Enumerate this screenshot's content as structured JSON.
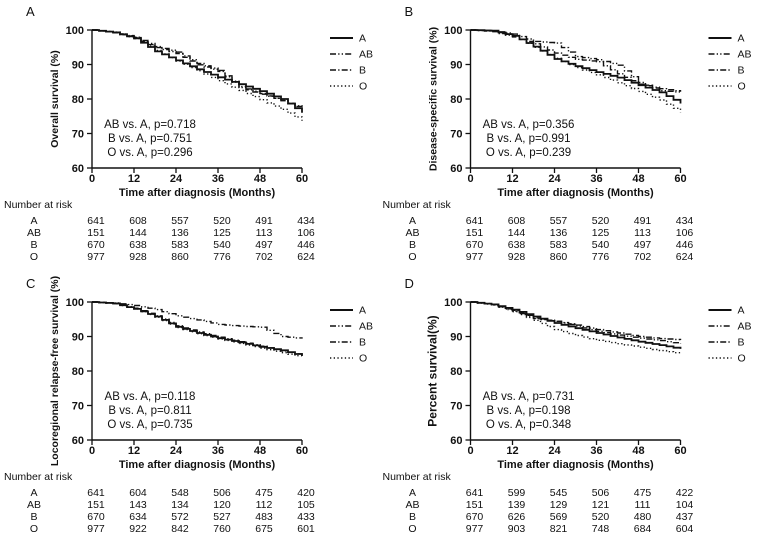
{
  "style": {
    "ink": "#111111",
    "background": "#ffffff"
  },
  "labels": {
    "number_at_risk": "Number at risk"
  },
  "axes": {
    "xlabel": "Time after diagnosis (Months)",
    "x_ticks": [
      0,
      12,
      24,
      36,
      48,
      60
    ],
    "y_ticks": [
      60,
      70,
      80,
      90,
      100
    ],
    "xlim": [
      0,
      60
    ],
    "ylim": [
      60,
      100
    ],
    "grid": false
  },
  "legend": {
    "position": "right",
    "entries": [
      {
        "label": "A",
        "style": "solid"
      },
      {
        "label": "AB",
        "style": "dash-dot-dot"
      },
      {
        "label": "B",
        "style": "dash-dot"
      },
      {
        "label": "O",
        "style": "dotted"
      }
    ]
  },
  "chart_data": [
    {
      "type": "line",
      "subtype": "kaplan-meier",
      "letter": "A",
      "ylabel": "Overall survival (%)",
      "x": [
        0,
        6,
        12,
        18,
        24,
        30,
        36,
        42,
        48,
        54,
        60
      ],
      "series": [
        {
          "name": "A",
          "style": "solid",
          "values": [
            100,
            99.3,
            97.6,
            93.8,
            91.2,
            88.6,
            86.3,
            84.3,
            82.3,
            80.0,
            76.0
          ]
        },
        {
          "name": "AB",
          "style": "dash-dot-dot",
          "values": [
            100,
            99.3,
            97.9,
            95.2,
            93.6,
            90.3,
            88.3,
            83.6,
            81.6,
            79.5,
            77.3
          ]
        },
        {
          "name": "B",
          "style": "dash-dot",
          "values": [
            100,
            99.2,
            97.5,
            94.9,
            93.2,
            89.9,
            88.0,
            83.3,
            81.4,
            79.6,
            77.0
          ]
        },
        {
          "name": "O",
          "style": "dotted",
          "values": [
            100,
            99.4,
            97.8,
            94.1,
            91.0,
            88.2,
            85.3,
            82.5,
            79.8,
            77.0,
            73.7
          ]
        }
      ],
      "annotations": [
        "AB vs. A, p=0.718",
        "B vs. A, p=0.751",
        "O vs. A, p=0.296"
      ],
      "number_at_risk": {
        "columns": [
          0,
          12,
          24,
          36,
          48,
          60
        ],
        "rows": [
          {
            "label": "A",
            "values": [
              641,
              608,
              557,
              520,
              491,
              434
            ]
          },
          {
            "label": "AB",
            "values": [
              151,
              144,
              136,
              125,
              113,
              106
            ]
          },
          {
            "label": "B",
            "values": [
              670,
              638,
              583,
              540,
              497,
              446
            ]
          },
          {
            "label": "O",
            "values": [
              977,
              928,
              860,
              776,
              702,
              624
            ]
          }
        ]
      }
    },
    {
      "type": "line",
      "subtype": "kaplan-meier",
      "letter": "B",
      "ylabel": "Disease-specific survival (%)",
      "x": [
        0,
        6,
        12,
        18,
        24,
        30,
        36,
        42,
        48,
        54,
        60
      ],
      "series": [
        {
          "name": "A",
          "style": "solid",
          "values": [
            100,
            99.8,
            98.3,
            95.2,
            91.6,
            89.5,
            87.8,
            86.2,
            84.0,
            81.9,
            78.7
          ]
        },
        {
          "name": "AB",
          "style": "dash-dot-dot",
          "values": [
            100,
            99.8,
            98.8,
            96.7,
            96.2,
            92.3,
            91.4,
            89.8,
            84.8,
            82.4,
            81.9
          ]
        },
        {
          "name": "B",
          "style": "dash-dot",
          "values": [
            100,
            99.5,
            98.0,
            96.0,
            93.3,
            91.5,
            90.8,
            87.3,
            84.3,
            83.0,
            82.1
          ]
        },
        {
          "name": "O",
          "style": "dotted",
          "values": [
            100,
            99.7,
            98.4,
            95.0,
            91.8,
            89.1,
            87.0,
            84.7,
            82.2,
            79.7,
            76.1
          ]
        }
      ],
      "annotations": [
        "AB vs. A, p=0.356",
        "B vs. A, p=0.991",
        "O vs. A, p=0.239"
      ],
      "number_at_risk": {
        "columns": [
          0,
          12,
          24,
          36,
          48,
          60
        ],
        "rows": [
          {
            "label": "A",
            "values": [
              641,
              608,
              557,
              520,
              491,
              434
            ]
          },
          {
            "label": "AB",
            "values": [
              151,
              144,
              136,
              125,
              113,
              106
            ]
          },
          {
            "label": "B",
            "values": [
              670,
              638,
              583,
              540,
              497,
              446
            ]
          },
          {
            "label": "O",
            "values": [
              977,
              928,
              860,
              776,
              702,
              624
            ]
          }
        ]
      }
    },
    {
      "type": "line",
      "subtype": "kaplan-meier",
      "letter": "C",
      "ylabel": "Locoregional relapse-free survival (%)",
      "x": [
        0,
        6,
        12,
        18,
        24,
        30,
        36,
        42,
        48,
        54,
        60
      ],
      "series": [
        {
          "name": "A",
          "style": "solid",
          "values": [
            100,
            99.6,
            98.0,
            95.8,
            92.8,
            91.0,
            89.5,
            88.3,
            87.0,
            86.0,
            84.4
          ]
        },
        {
          "name": "AB",
          "style": "dash-dot-dot",
          "values": [
            100,
            99.7,
            99.0,
            97.8,
            96.0,
            94.8,
            93.5,
            93.0,
            92.7,
            90.0,
            89.4
          ]
        },
        {
          "name": "B",
          "style": "dash-dot",
          "values": [
            100,
            99.5,
            98.2,
            96.0,
            93.1,
            91.3,
            89.8,
            88.5,
            87.2,
            85.8,
            84.6
          ]
        },
        {
          "name": "O",
          "style": "dotted",
          "values": [
            100,
            99.5,
            98.0,
            95.6,
            92.6,
            90.8,
            89.3,
            88.0,
            86.6,
            85.3,
            84.0
          ]
        }
      ],
      "annotations": [
        "AB vs. A, p=0.118",
        "B vs. A, p=0.811",
        "O vs. A, p=0.735"
      ],
      "number_at_risk": {
        "columns": [
          0,
          12,
          24,
          36,
          48,
          60
        ],
        "rows": [
          {
            "label": "A",
            "values": [
              641,
              604,
              548,
              506,
              475,
              420
            ]
          },
          {
            "label": "AB",
            "values": [
              151,
              143,
              134,
              120,
              112,
              105
            ]
          },
          {
            "label": "B",
            "values": [
              670,
              634,
              572,
              527,
              483,
              433
            ]
          },
          {
            "label": "O",
            "values": [
              977,
              922,
              842,
              760,
              675,
              601
            ]
          }
        ]
      }
    },
    {
      "type": "line",
      "subtype": "kaplan-meier",
      "letter": "D",
      "ylabel": "Percent survival(%)",
      "x": [
        0,
        6,
        12,
        18,
        24,
        30,
        36,
        42,
        48,
        54,
        60
      ],
      "series": [
        {
          "name": "A",
          "style": "solid",
          "values": [
            100,
            99.3,
            97.8,
            95.8,
            93.9,
            92.4,
            91.0,
            89.7,
            88.5,
            87.5,
            86.4
          ]
        },
        {
          "name": "AB",
          "style": "dash-dot-dot",
          "values": [
            100,
            99.2,
            97.4,
            95.2,
            94.4,
            93.0,
            91.5,
            90.4,
            89.5,
            88.8,
            87.9
          ]
        },
        {
          "name": "B",
          "style": "dash-dot",
          "values": [
            100,
            99.3,
            97.6,
            95.4,
            94.4,
            93.3,
            92.0,
            91.0,
            90.0,
            89.4,
            89.0
          ]
        },
        {
          "name": "O",
          "style": "dotted",
          "values": [
            100,
            99.1,
            97.2,
            94.7,
            92.0,
            90.3,
            88.9,
            87.9,
            86.9,
            85.9,
            85.0
          ]
        }
      ],
      "annotations": [
        "AB vs. A, p=0.731",
        "B vs. A, p=0.198",
        "O vs. A, p=0.348"
      ],
      "number_at_risk": {
        "columns": [
          0,
          12,
          24,
          36,
          48,
          60
        ],
        "rows": [
          {
            "label": "A",
            "values": [
              641,
              599,
              545,
              506,
              475,
              422
            ]
          },
          {
            "label": "AB",
            "values": [
              151,
              139,
              129,
              121,
              111,
              104
            ]
          },
          {
            "label": "B",
            "values": [
              670,
              626,
              569,
              520,
              480,
              437
            ]
          },
          {
            "label": "O",
            "values": [
              977,
              903,
              821,
              748,
              684,
              604
            ]
          }
        ]
      }
    }
  ]
}
